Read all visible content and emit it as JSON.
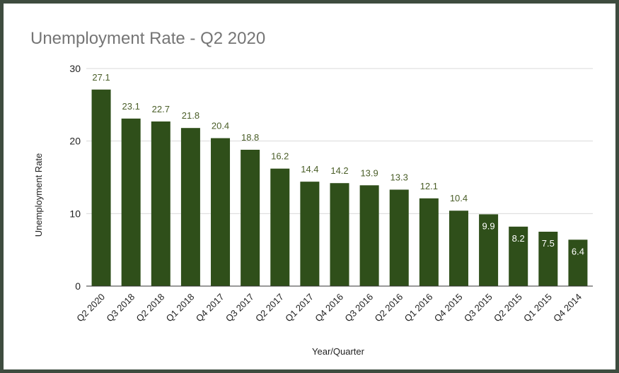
{
  "chart_data": {
    "type": "bar",
    "title": "Unemployment Rate - Q2 2020",
    "xlabel": "Year/Quarter",
    "ylabel": "Unemployment Rate",
    "ylim": [
      0,
      30
    ],
    "yticks": [
      0,
      10,
      20,
      30
    ],
    "grid": true,
    "legend": "none",
    "bar_color": "#2f4f1a",
    "label_color_outside": "#4a5e28",
    "label_color_inside": "#ffffff",
    "categories": [
      "Q2 2020",
      "Q3 2018",
      "Q2 2018",
      "Q1 2018",
      "Q4 2017",
      "Q3 2017",
      "Q2 2017",
      "Q1 2017",
      "Q4 2016",
      "Q3 2016",
      "Q2 2016",
      "Q1 2016",
      "Q4 2015",
      "Q3 2015",
      "Q2 2015",
      "Q1 2015",
      "Q4 2014"
    ],
    "values": [
      27.1,
      23.1,
      22.7,
      21.8,
      20.4,
      18.8,
      16.2,
      14.4,
      14.2,
      13.9,
      13.3,
      12.1,
      10.4,
      9.9,
      8.2,
      7.5,
      6.4
    ]
  }
}
